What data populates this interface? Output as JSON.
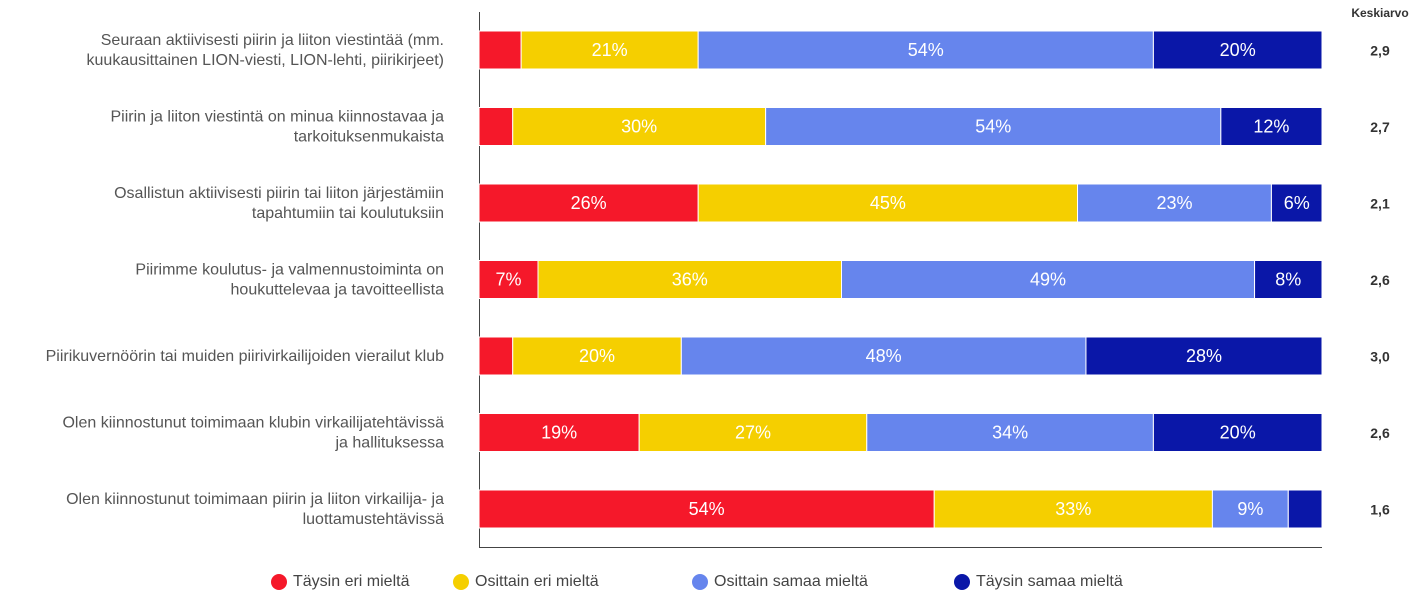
{
  "chart_data": {
    "type": "stacked_bar_horizontal_percent",
    "categories": [
      [
        "Seuraan aktiivisesti piirin ja liiton viestintää (mm.",
        "kuukausittainen LION-viesti, LION-lehti, piirikirjeet)"
      ],
      [
        "Piirin ja liiton viestintä on minua kiinnostavaa ja",
        "tarkoituksenmukaista"
      ],
      [
        "Osallistun aktiivisesti piirin tai liiton järjestämiin",
        "tapahtumiin tai koulutuksiin"
      ],
      [
        "Piirimme koulutus- ja valmennustoiminta on",
        "houkuttelevaa ja tavoitteellista"
      ],
      [
        "Piirikuvernöörin tai muiden piirivirkailijoiden vierailut klub"
      ],
      [
        "Olen kiinnostunut toimimaan klubin virkailijatehtävissä",
        "ja hallituksessa"
      ],
      [
        "Olen kiinnostunut toimimaan piirin ja liiton virkailija- ja",
        "luottamustehtävissä"
      ]
    ],
    "xlim": [
      0,
      100
    ],
    "series": [
      {
        "name": "Täysin eri mieltä",
        "color": "#f5182a",
        "values": [
          5,
          4,
          26,
          7,
          4,
          19,
          54
        ],
        "value_labels": [
          null,
          null,
          "26%",
          "7%",
          null,
          "19%",
          "54%"
        ]
      },
      {
        "name": "Osittain eri mieltä",
        "color": "#f5cf00",
        "values": [
          21,
          30,
          45,
          36,
          20,
          27,
          33
        ],
        "value_labels": [
          "21%",
          "30%",
          "45%",
          "36%",
          "20%",
          "27%",
          "33%"
        ]
      },
      {
        "name": "Osittain samaa mieltä",
        "color": "#6685ed",
        "values": [
          54,
          54,
          23,
          49,
          48,
          34,
          9
        ],
        "value_labels": [
          "54%",
          "54%",
          "23%",
          "49%",
          "48%",
          "34%",
          "9%"
        ]
      },
      {
        "name": "Täysin samaa mieltä",
        "color": "#0a17a8",
        "values": [
          20,
          12,
          6,
          8,
          28,
          20,
          4
        ],
        "value_labels": [
          "20%",
          "12%",
          "6%",
          "8%",
          "28%",
          "20%",
          null
        ]
      }
    ],
    "averages_title": "Keskiarvo",
    "averages": [
      "2,9",
      "2,7",
      "2,1",
      "2,6",
      "3,0",
      "2,6",
      "1,6"
    ]
  }
}
